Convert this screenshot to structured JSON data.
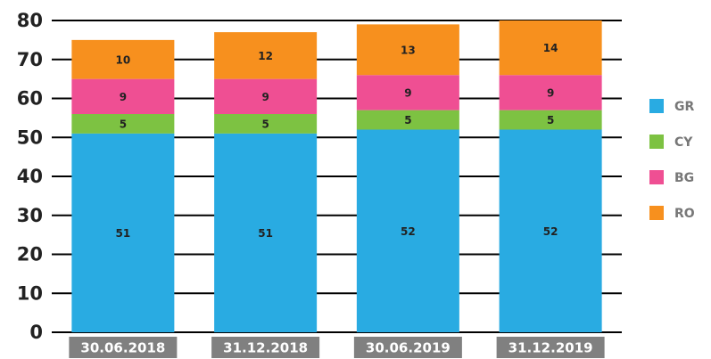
{
  "chart_data": {
    "type": "bar",
    "stacked": true,
    "categories": [
      "30.06.2018",
      "31.12.2018",
      "30.06.2019",
      "31.12.2019"
    ],
    "series": [
      {
        "name": "GR",
        "color": "#29abe2",
        "values": [
          51,
          51,
          52,
          52
        ]
      },
      {
        "name": "CY",
        "color": "#7dc242",
        "values": [
          5,
          5,
          5,
          5
        ]
      },
      {
        "name": "BG",
        "color": "#ef4f93",
        "values": [
          9,
          9,
          9,
          9
        ]
      },
      {
        "name": "RO",
        "color": "#f7901e",
        "values": [
          10,
          12,
          13,
          14
        ]
      }
    ],
    "ylim": [
      0,
      80
    ],
    "yticks": [
      0,
      10,
      20,
      30,
      40,
      50,
      60,
      70,
      80
    ],
    "grid": true,
    "legend": "right"
  }
}
